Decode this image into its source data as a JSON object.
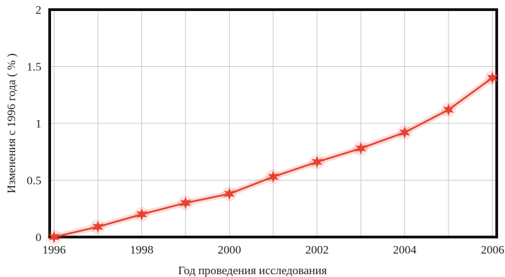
{
  "chart_data": {
    "type": "line",
    "title": "",
    "xlabel": "Год проведения исследования",
    "ylabel": "Изменения с 1996 года ( % )",
    "x": [
      1996,
      1997,
      1998,
      1999,
      2000,
      2001,
      2002,
      2003,
      2004,
      2005,
      2006
    ],
    "series": [
      {
        "values": [
          0.0,
          0.09,
          0.2,
          0.3,
          0.38,
          0.53,
          0.66,
          0.78,
          0.92,
          1.12,
          1.4
        ],
        "color": "#e8402f"
      }
    ],
    "xlim": [
      1995.9,
      2006.1
    ],
    "ylim": [
      0,
      2
    ],
    "xticks": [
      "1996",
      "1998",
      "2000",
      "2002",
      "2004",
      "2006"
    ],
    "yticks": [
      "0",
      "0.5",
      "1",
      "1.5",
      "2"
    ],
    "grid": true,
    "marker": "star"
  }
}
